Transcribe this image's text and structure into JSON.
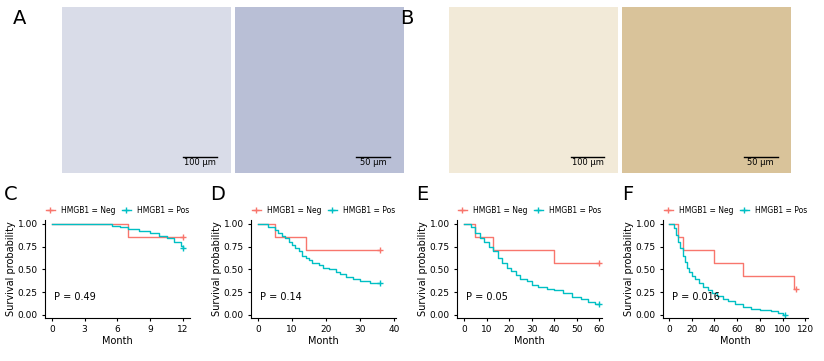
{
  "panel_labels": [
    "A",
    "B",
    "C",
    "D",
    "E",
    "F"
  ],
  "images": [
    {
      "panel": "A",
      "scale_bars": [
        "100 μm",
        "50 μm"
      ]
    },
    {
      "panel": "B",
      "scale_bars": [
        "100 μm",
        "50 μm"
      ]
    }
  ],
  "chart_data": [
    {
      "type": "line",
      "line_style": "steps",
      "x_label": "Month",
      "y_label": "Survival probability",
      "annotation": "P = 0.49",
      "legend": "top",
      "xlim": [
        -0.6,
        12.6
      ],
      "xticks": [
        0,
        3,
        6,
        9,
        12
      ],
      "ylim": [
        -0.03,
        1.04
      ],
      "yticks": [
        {
          "value": 0,
          "label": "0.00"
        },
        {
          "value": 0.25,
          "label": "0.25"
        },
        {
          "value": 0.5,
          "label": "0.50"
        },
        {
          "value": 0.75,
          "label": "0.75"
        },
        {
          "value": 1,
          "label": "1.00"
        }
      ],
      "series": [
        {
          "name": "HMGB1 = Neg",
          "color": "#f8766d",
          "marker": "+",
          "x": [
            0,
            7,
            12
          ],
          "values": [
            1.0,
            0.857,
            0.857
          ]
        },
        {
          "name": "HMGB1 = Pos",
          "color": "#00bfc4",
          "marker": "+",
          "x": [
            0,
            5.5,
            6.2,
            7,
            8,
            9,
            9.8,
            10.5,
            11.2,
            11.8,
            12
          ],
          "values": [
            1.0,
            0.98,
            0.96,
            0.94,
            0.92,
            0.9,
            0.87,
            0.84,
            0.8,
            0.76,
            0.73
          ]
        }
      ]
    },
    {
      "type": "line",
      "line_style": "steps",
      "x_label": "Month",
      "y_label": "Survival probability",
      "annotation": "P = 0.14",
      "legend": "top",
      "xlim": [
        -2,
        40.5
      ],
      "xticks": [
        0,
        10,
        20,
        30,
        40
      ],
      "ylim": [
        -0.03,
        1.04
      ],
      "yticks": [
        {
          "value": 0,
          "label": "0.00"
        },
        {
          "value": 0.25,
          "label": "0.25"
        },
        {
          "value": 0.5,
          "label": "0.50"
        },
        {
          "value": 0.75,
          "label": "0.75"
        },
        {
          "value": 1,
          "label": "1.00"
        }
      ],
      "series": [
        {
          "name": "HMGB1 = Neg",
          "color": "#f8766d",
          "marker": "+",
          "x": [
            0,
            5,
            14,
            36
          ],
          "values": [
            1.0,
            0.857,
            0.714,
            0.714
          ]
        },
        {
          "name": "HMGB1 = Pos",
          "color": "#00bfc4",
          "marker": "+",
          "x": [
            0,
            3,
            5,
            6,
            7,
            8,
            9,
            10,
            11,
            12,
            13,
            14,
            15,
            16,
            18,
            19,
            21,
            23,
            24,
            26,
            28,
            30,
            33,
            36
          ],
          "values": [
            1.0,
            0.97,
            0.93,
            0.9,
            0.87,
            0.84,
            0.8,
            0.77,
            0.73,
            0.7,
            0.65,
            0.62,
            0.6,
            0.57,
            0.55,
            0.52,
            0.5,
            0.47,
            0.45,
            0.42,
            0.4,
            0.37,
            0.35,
            0.35
          ]
        }
      ]
    },
    {
      "type": "line",
      "line_style": "steps",
      "x_label": "Month",
      "y_label": "Survival probability",
      "annotation": "P = 0.05",
      "legend": "top",
      "xlim": [
        -3,
        61
      ],
      "xticks": [
        0,
        10,
        20,
        30,
        40,
        50,
        60
      ],
      "ylim": [
        -0.03,
        1.04
      ],
      "yticks": [
        {
          "value": 0,
          "label": "0.00"
        },
        {
          "value": 0.25,
          "label": "0.25"
        },
        {
          "value": 0.5,
          "label": "0.50"
        },
        {
          "value": 0.75,
          "label": "0.75"
        },
        {
          "value": 1,
          "label": "1.00"
        }
      ],
      "series": [
        {
          "name": "HMGB1 = Neg",
          "color": "#f8766d",
          "marker": "+",
          "x": [
            0,
            5,
            13,
            40,
            60
          ],
          "values": [
            1.0,
            0.857,
            0.714,
            0.571,
            0.571
          ]
        },
        {
          "name": "HMGB1 = Pos",
          "color": "#00bfc4",
          "marker": "+",
          "x": [
            0,
            3,
            5,
            7,
            9,
            11,
            13,
            15,
            17,
            19,
            21,
            23,
            25,
            28,
            30,
            33,
            37,
            40,
            44,
            48,
            52,
            55,
            58,
            60
          ],
          "values": [
            1.0,
            0.97,
            0.9,
            0.85,
            0.8,
            0.75,
            0.7,
            0.62,
            0.57,
            0.52,
            0.48,
            0.44,
            0.4,
            0.37,
            0.33,
            0.31,
            0.29,
            0.27,
            0.24,
            0.2,
            0.17,
            0.14,
            0.12,
            0.12
          ]
        }
      ]
    },
    {
      "type": "line",
      "line_style": "steps",
      "x_label": "Month",
      "y_label": "Survival probability",
      "annotation": "P = 0.016",
      "legend": "top",
      "xlim": [
        -5,
        122
      ],
      "xticks": [
        0,
        20,
        40,
        60,
        80,
        100,
        120
      ],
      "ylim": [
        -0.03,
        1.04
      ],
      "yticks": [
        {
          "value": 0,
          "label": "0.00"
        },
        {
          "value": 0.25,
          "label": "0.25"
        },
        {
          "value": 0.5,
          "label": "0.50"
        },
        {
          "value": 0.75,
          "label": "0.75"
        },
        {
          "value": 1,
          "label": "1.00"
        }
      ],
      "series": [
        {
          "name": "HMGB1 = Neg",
          "color": "#f8766d",
          "marker": "+",
          "x": [
            0,
            8,
            12,
            40,
            65,
            110,
            112
          ],
          "values": [
            1.0,
            0.857,
            0.714,
            0.571,
            0.429,
            0.286,
            0.286
          ]
        },
        {
          "name": "HMGB1 = Pos",
          "color": "#00bfc4",
          "marker": "+",
          "x": [
            0,
            4,
            6,
            8,
            10,
            12,
            14,
            16,
            18,
            20,
            23,
            26,
            30,
            34,
            38,
            42,
            48,
            52,
            58,
            65,
            72,
            80,
            90,
            96,
            100,
            102
          ],
          "values": [
            1.0,
            0.95,
            0.88,
            0.8,
            0.73,
            0.65,
            0.58,
            0.52,
            0.47,
            0.43,
            0.39,
            0.35,
            0.31,
            0.27,
            0.24,
            0.21,
            0.18,
            0.15,
            0.12,
            0.09,
            0.07,
            0.05,
            0.04,
            0.02,
            0.0,
            0.0
          ]
        }
      ]
    }
  ]
}
